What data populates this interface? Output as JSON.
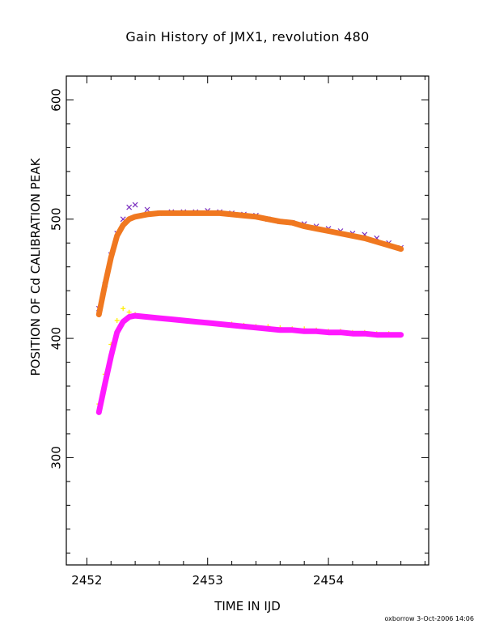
{
  "chart_data": {
    "type": "scatter",
    "title": "Gain History of JMX1, revolution 480",
    "xlabel": "TIME IN IJD",
    "ylabel": "POSITION OF Cd CALIBRATION PEAK",
    "xlim": [
      2451.83,
      2454.83
    ],
    "ylim": [
      210,
      620
    ],
    "x_ticks": [
      2452,
      2453,
      2454
    ],
    "y_ticks": [
      300,
      400,
      500,
      600
    ],
    "grid": false,
    "legend": "none",
    "series": [
      {
        "marker": "x",
        "color": "#7b2fbf",
        "style": "scatter",
        "x": [
          2452.1,
          2452.15,
          2452.2,
          2452.25,
          2452.3,
          2452.35,
          2452.4,
          2452.5,
          2452.6,
          2452.7,
          2452.8,
          2452.9,
          2453.0,
          2453.1,
          2453.2,
          2453.3,
          2453.4,
          2453.5,
          2453.6,
          2453.7,
          2453.8,
          2453.9,
          2454.0,
          2454.1,
          2454.2,
          2454.3,
          2454.4,
          2454.5,
          2454.6
        ],
        "y": [
          425,
          445,
          470,
          488,
          500,
          510,
          512,
          508,
          505,
          506,
          506,
          506,
          507,
          506,
          505,
          504,
          503,
          500,
          498,
          497,
          496,
          494,
          492,
          490,
          488,
          487,
          484,
          480,
          476
        ]
      },
      {
        "marker": "line",
        "color": "#f07820",
        "style": "fit",
        "x": [
          2452.1,
          2452.15,
          2452.2,
          2452.25,
          2452.3,
          2452.35,
          2452.4,
          2452.5,
          2452.6,
          2452.7,
          2452.8,
          2452.9,
          2453.0,
          2453.1,
          2453.2,
          2453.3,
          2453.4,
          2453.5,
          2453.6,
          2453.7,
          2453.8,
          2453.9,
          2454.0,
          2454.1,
          2454.2,
          2454.3,
          2454.4,
          2454.5,
          2454.6
        ],
        "y": [
          420,
          445,
          468,
          486,
          495,
          500,
          502,
          504,
          505,
          505,
          505,
          505,
          505,
          505,
          504,
          503,
          502,
          500,
          498,
          497,
          494,
          492,
          490,
          488,
          486,
          484,
          481,
          478,
          475
        ]
      },
      {
        "marker": "+",
        "color": "#ffee00",
        "style": "scatter",
        "x": [
          2452.1,
          2452.15,
          2452.2,
          2452.25,
          2452.3,
          2452.35,
          2452.4,
          2452.5,
          2452.6,
          2452.7,
          2452.8,
          2452.9,
          2453.0,
          2453.1,
          2453.2,
          2453.3,
          2453.4,
          2453.5,
          2453.6,
          2453.7,
          2453.8,
          2453.9,
          2454.0,
          2454.1,
          2454.2,
          2454.3,
          2454.4,
          2454.5,
          2454.6
        ],
        "y": [
          345,
          370,
          395,
          415,
          425,
          422,
          420,
          418,
          417,
          416,
          415,
          414,
          413,
          412,
          412,
          411,
          410,
          410,
          409,
          408,
          408,
          407,
          406,
          406,
          405,
          405,
          404,
          404,
          403
        ]
      },
      {
        "marker": "line",
        "color": "#ff19ff",
        "style": "fit",
        "x": [
          2452.1,
          2452.15,
          2452.2,
          2452.25,
          2452.3,
          2452.35,
          2452.4,
          2452.5,
          2452.6,
          2452.7,
          2452.8,
          2452.9,
          2453.0,
          2453.1,
          2453.2,
          2453.3,
          2453.4,
          2453.5,
          2453.6,
          2453.7,
          2453.8,
          2453.9,
          2454.0,
          2454.1,
          2454.2,
          2454.3,
          2454.4,
          2454.5,
          2454.6
        ],
        "y": [
          338,
          362,
          385,
          405,
          414,
          418,
          419,
          418,
          417,
          416,
          415,
          414,
          413,
          412,
          411,
          410,
          409,
          408,
          407,
          407,
          406,
          406,
          405,
          405,
          404,
          404,
          403,
          403,
          403
        ]
      }
    ]
  },
  "footer": "oxborrow   3-Oct-2006 14:06"
}
